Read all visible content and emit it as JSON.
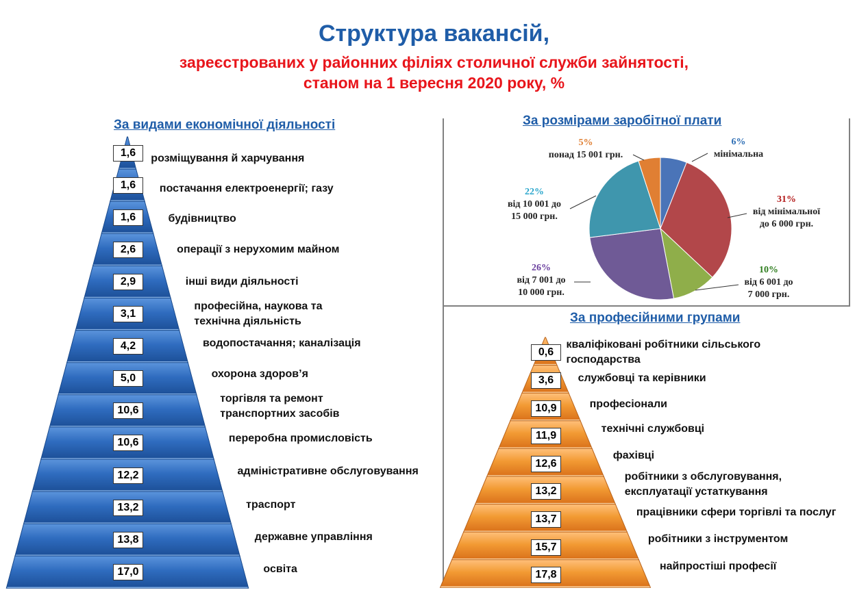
{
  "header": {
    "title": "Структура вакансій,",
    "subtitle_line1": "зареєстрованих у районних філіях столичної служби зайнятості,",
    "subtitle_line2": "станом на 1 вересня 2020 року, %"
  },
  "sections": {
    "activity": "За видами економічної діяльності",
    "salary": "За розмірами заробітної плати",
    "professions": "За професійними групами"
  },
  "colors": {
    "blue_pyramid": "#2b67b8",
    "orange_pyramid": "#ee8a1f",
    "title_blue": "#1f5da8",
    "subtitle_red": "#e8151b"
  },
  "chart_data": [
    {
      "type": "bar",
      "title": "За видами економічної діяльності",
      "categories": [
        "розміщування й харчування",
        "постачання електроенергії; газу",
        "будівництво",
        "операції з нерухомим майном",
        "інші види діяльності",
        "професійна, наукова та технічна діяльність",
        "водопостачання; каналізація",
        "охорона здоров’я",
        "торгівля та ремонт транспортних засобів",
        "переробна промисловість",
        "адміністративне обслуговування",
        "траспорт",
        "державне управління",
        "освіта"
      ],
      "labels": [
        [
          "розміщування й харчування"
        ],
        [
          "постачання електроенергії;  газу"
        ],
        [
          "будівництво"
        ],
        [
          "операції з нерухомим майном"
        ],
        [
          "інші види діяльності"
        ],
        [
          "професійна, наукова та",
          "технічна діяльність"
        ],
        [
          "водопостачання; каналізація"
        ],
        [
          "охорона здоров’я"
        ],
        [
          "торгівля та ремонт",
          "транспортних засобів"
        ],
        [
          "переробна промисловість"
        ],
        [
          "адміністративне  обслуговування"
        ],
        [
          "траспорт"
        ],
        [
          "державне управління"
        ],
        [
          "освіта"
        ]
      ],
      "value_labels": [
        "1,6",
        "1,6",
        "1,6",
        "2,6",
        "2,9",
        "3,1",
        "4,2",
        "5,0",
        "10,6",
        "10,6",
        "12,2",
        "13,2",
        "13,8",
        "17,0"
      ],
      "values": [
        1.6,
        1.6,
        1.6,
        2.6,
        2.9,
        3.1,
        4.2,
        5.0,
        10.6,
        10.6,
        12.2,
        13.2,
        13.8,
        17.0
      ]
    },
    {
      "type": "pie",
      "title": "За розмірами заробітної плати",
      "categories": [
        "мінімальна",
        "від мінімальної до 6 000 грн.",
        "від 6 001 до 7 000 грн.",
        "від 7 001 до 10 000 грн.",
        "від 10 001 до 15 000 грн.",
        "понад 15 001 грн."
      ],
      "values": [
        6,
        31,
        10,
        26,
        22,
        5
      ],
      "value_labels": [
        "6%",
        "31%",
        "10%",
        "26%",
        "22%",
        "5%"
      ],
      "colors": [
        "#4a74b8",
        "#b2474a",
        "#8fae4a",
        "#6f5a96",
        "#3f96ad",
        "#e07f33"
      ],
      "label_colors": [
        "#2f6fb5",
        "#b31b1b",
        "#2e7d1e",
        "#6a3f9e",
        "#2aa6cc",
        "#e07f33"
      ],
      "label_lines": [
        [
          "мінімальна"
        ],
        [
          "від мінімальної",
          "до 6 000 грн."
        ],
        [
          "від 6 001 до",
          "7 000 грн."
        ],
        [
          "від 7 001 до",
          "10 000 грн."
        ],
        [
          "від 10 001 до",
          "15 000 грн."
        ],
        [
          "понад  15 001 грн."
        ]
      ]
    },
    {
      "type": "bar",
      "title": "За професійними групами",
      "categories": [
        "кваліфіковані робітники сільського господарства",
        "службовці та керівники",
        "професіонали",
        "технічні службовці",
        "фахівці",
        "робітники з обслуговування, експлуатації устаткування",
        "працівники сфери торгівлі та послуг",
        "робітники з інструментом",
        "найпростіші професії"
      ],
      "labels": [
        [
          "кваліфіковані робітники сільського",
          "господарства"
        ],
        [
          "службовці та керівники"
        ],
        [
          "професіонали"
        ],
        [
          "технічні службовці"
        ],
        [
          "фахівці"
        ],
        [
          "робітники з обслуговування,",
          " експлуатації устаткування"
        ],
        [
          "працівники сфери торгівлі та послуг"
        ],
        [
          "робітники з інструментом"
        ],
        [
          "найпростіші професії"
        ]
      ],
      "value_labels": [
        "0,6",
        "3,6",
        "10,9",
        "11,9",
        "12,6",
        "13,2",
        "13,7",
        "15,7",
        "17,8"
      ],
      "values": [
        0.6,
        3.6,
        10.9,
        11.9,
        12.6,
        13.2,
        13.7,
        15.7,
        17.8
      ]
    }
  ]
}
